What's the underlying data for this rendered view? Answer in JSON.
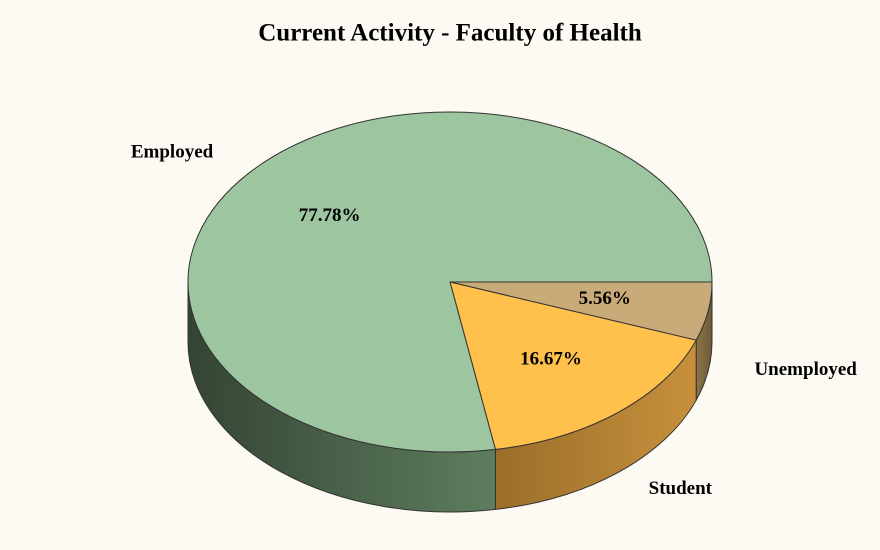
{
  "chart_data": {
    "type": "pie",
    "title": "Current Activity - Faculty of Health",
    "categories": [
      "Unemployed",
      "Student",
      "Employed"
    ],
    "values": [
      5.56,
      16.67,
      77.78
    ],
    "value_labels": [
      "5.56%",
      "16.67%",
      "77.78%"
    ],
    "colors": [
      "#c8ab78",
      "#ffc04c",
      "#9dc59f"
    ]
  }
}
